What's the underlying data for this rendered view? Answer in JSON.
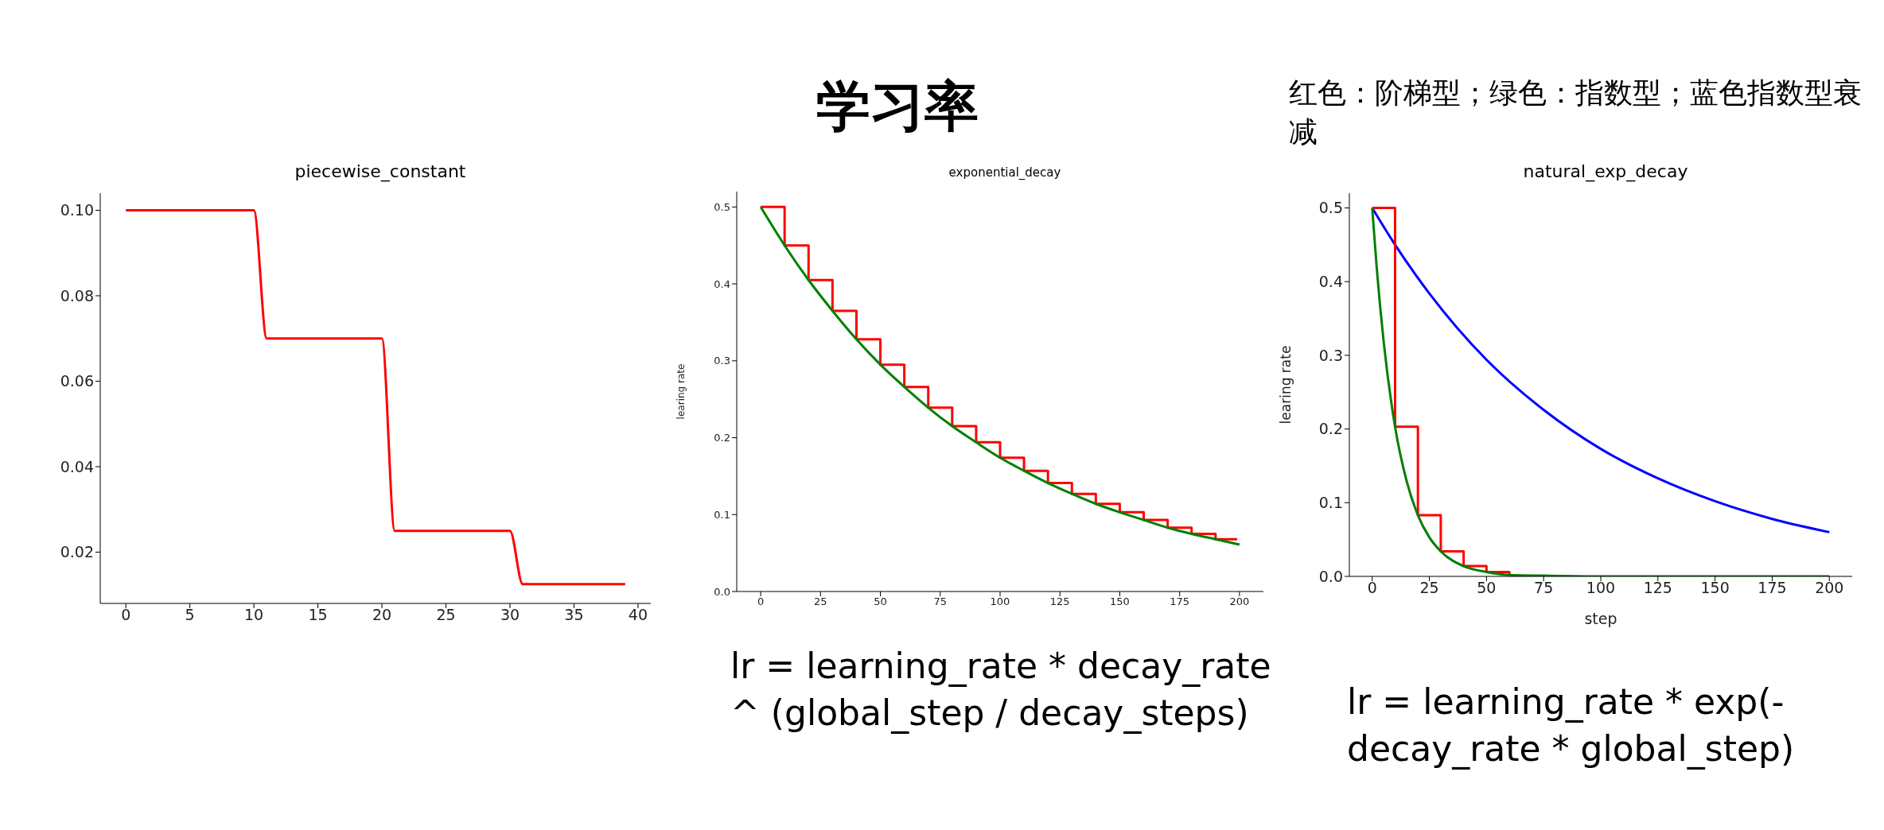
{
  "chart_data": [
    {
      "type": "line",
      "title": "piecewise_constant",
      "xlim": [
        -2,
        41
      ],
      "xticks": [
        0,
        5,
        10,
        15,
        20,
        25,
        30,
        35,
        40
      ],
      "ylim": [
        0.008,
        0.104
      ],
      "yticks": [
        {
          "value": 0.02,
          "label": "0.02"
        },
        {
          "value": 0.04,
          "label": "0.04"
        },
        {
          "value": 0.06,
          "label": "0.06"
        },
        {
          "value": 0.08,
          "label": "0.08"
        },
        {
          "value": 0.1,
          "label": "0.10"
        }
      ],
      "series": [
        {
          "color": "#ff0000",
          "x": [
            0,
            10,
            11,
            20,
            21,
            30,
            31,
            39
          ],
          "values": [
            0.1,
            0.1,
            0.07,
            0.07,
            0.025,
            0.025,
            0.0125,
            0.0125
          ]
        }
      ]
    },
    {
      "type": "line",
      "title": "exponential_decay",
      "ylabel": "learing rate",
      "xlim": [
        -10,
        210
      ],
      "xticks": [
        0,
        25,
        50,
        75,
        100,
        125,
        150,
        175,
        200
      ],
      "ylim": [
        0,
        0.52
      ],
      "yticks": [
        {
          "value": 0,
          "label": "0.0"
        },
        {
          "value": 0.1,
          "label": "0.1"
        },
        {
          "value": 0.2,
          "label": "0.2"
        },
        {
          "value": 0.3,
          "label": "0.3"
        },
        {
          "value": 0.4,
          "label": "0.4"
        },
        {
          "value": 0.5,
          "label": "0.5"
        }
      ],
      "annotations": [
        "学习率",
        "lr = learning_rate * decay_rate ^ (global_step / decay_steps)"
      ],
      "series": [
        {
          "type": "step",
          "color": "#ff0000",
          "x": [
            0,
            10,
            20,
            30,
            40,
            50,
            60,
            70,
            80,
            90,
            100,
            110,
            120,
            130,
            140,
            150,
            160,
            170,
            180,
            190,
            199
          ],
          "values": [
            0.5,
            0.45,
            0.405,
            0.365,
            0.328,
            0.295,
            0.266,
            0.239,
            0.215,
            0.194,
            0.174,
            0.157,
            0.141,
            0.127,
            0.114,
            0.103,
            0.093,
            0.083,
            0.075,
            0.068,
            0.068
          ]
        },
        {
          "color": "#008000",
          "x": [
            0,
            10,
            20,
            30,
            40,
            50,
            60,
            70,
            80,
            90,
            100,
            110,
            120,
            130,
            140,
            150,
            160,
            170,
            180,
            190,
            200
          ],
          "values": [
            0.5,
            0.45,
            0.405,
            0.365,
            0.328,
            0.295,
            0.266,
            0.239,
            0.215,
            0.194,
            0.174,
            0.157,
            0.141,
            0.127,
            0.114,
            0.103,
            0.093,
            0.083,
            0.075,
            0.068,
            0.061
          ]
        }
      ]
    },
    {
      "type": "line",
      "title": "natural_exp_decay",
      "xlabel": "step",
      "ylabel": "learing rate",
      "xlim": [
        -10,
        210
      ],
      "xticks": [
        0,
        25,
        50,
        75,
        100,
        125,
        150,
        175,
        200
      ],
      "ylim": [
        0,
        0.52
      ],
      "yticks": [
        {
          "value": 0,
          "label": "0.0"
        },
        {
          "value": 0.1,
          "label": "0.1"
        },
        {
          "value": 0.2,
          "label": "0.2"
        },
        {
          "value": 0.3,
          "label": "0.3"
        },
        {
          "value": 0.4,
          "label": "0.4"
        },
        {
          "value": 0.5,
          "label": "0.5"
        }
      ],
      "annotations": [
        "红色：阶梯型；绿色：指数型；蓝色指数型衰减",
        "lr = learning_rate * exp(-decay_rate * global_step)"
      ],
      "series": [
        {
          "color": "#0000ff",
          "x": [
            0,
            10,
            25,
            50,
            75,
            100,
            125,
            150,
            175,
            200
          ],
          "values": [
            0.5,
            0.45,
            0.384,
            0.294,
            0.226,
            0.173,
            0.133,
            0.102,
            0.078,
            0.06
          ]
        },
        {
          "type": "step",
          "color": "#ff0000",
          "x": [
            0,
            10,
            20,
            30,
            40,
            50,
            60
          ],
          "values": [
            0.5,
            0.203,
            0.083,
            0.034,
            0.014,
            0.006,
            0.002
          ]
        },
        {
          "color": "#008000",
          "x": [
            0,
            2,
            5,
            10,
            15,
            20,
            25,
            30,
            40,
            50,
            60,
            75,
            100,
            150,
            200
          ],
          "values": [
            0.5,
            0.418,
            0.319,
            0.203,
            0.13,
            0.083,
            0.053,
            0.034,
            0.014,
            0.006,
            0.002,
            0.001,
            0,
            0,
            0
          ]
        }
      ]
    }
  ]
}
